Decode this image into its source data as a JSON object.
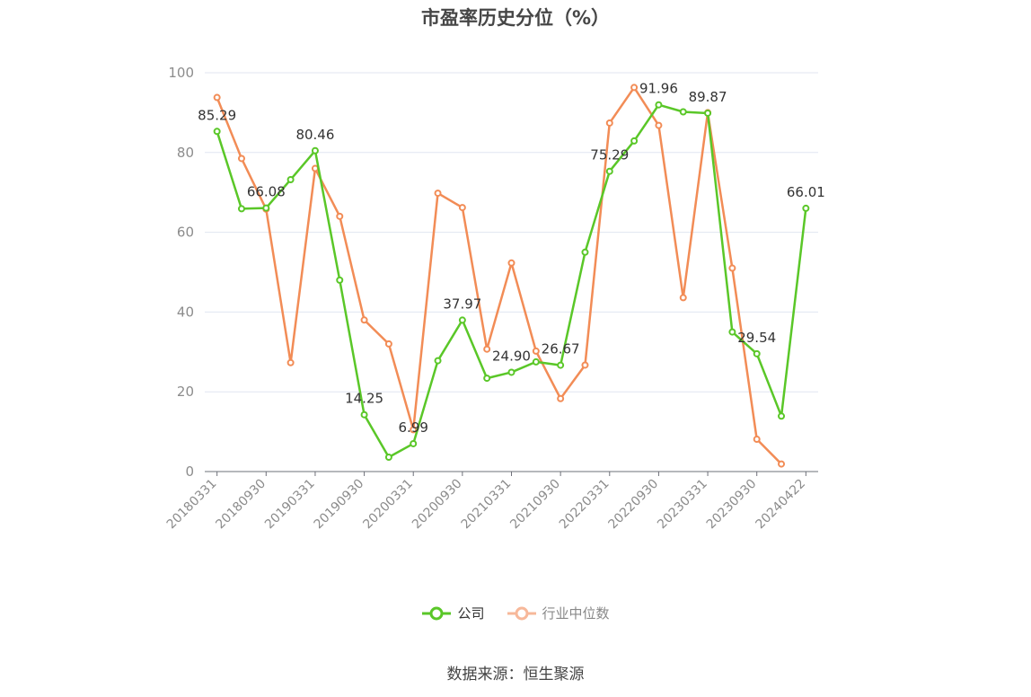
{
  "chart_data": {
    "type": "line",
    "title": "市盈率历史分位（%）",
    "xlabel": "",
    "ylabel": "",
    "ylim": [
      0,
      100
    ],
    "yticks": [
      0,
      20,
      40,
      60,
      80,
      100
    ],
    "x": [
      "20180331",
      "20180630",
      "20180930",
      "20181231",
      "20190331",
      "20190630",
      "20190930",
      "20191231",
      "20200331",
      "20200630",
      "20200930",
      "20201231",
      "20210331",
      "20210630",
      "20210930",
      "20211231",
      "20220331",
      "20220630",
      "20220930",
      "20221231",
      "20230331",
      "20230630",
      "20230930",
      "20231231",
      "20240422"
    ],
    "xtick_labels": [
      "20180331",
      "20180930",
      "20190331",
      "20190930",
      "20200331",
      "20200930",
      "20210331",
      "20210930",
      "20220331",
      "20220930",
      "20230331",
      "20230930",
      "20240422"
    ],
    "grid": true,
    "legend_position": "bottom",
    "series": [
      {
        "name": "公司",
        "color": "#5ac728",
        "values": [
          85.29,
          65.9,
          66.08,
          73.2,
          80.46,
          48.0,
          14.25,
          3.6,
          6.99,
          27.8,
          37.97,
          23.4,
          24.9,
          27.5,
          26.67,
          55.0,
          75.29,
          82.9,
          91.96,
          90.2,
          89.87,
          35.0,
          29.54,
          13.9,
          66.01
        ],
        "labels": {
          "0": "85.29",
          "2": "66.08",
          "4": "80.46",
          "6": "14.25",
          "8": "6.99",
          "10": "37.97",
          "12": "24.90",
          "14": "26.67",
          "16": "75.29",
          "18": "91.96",
          "20": "89.87",
          "22": "29.54",
          "24": "66.01"
        }
      },
      {
        "name": "行业中位数",
        "color": "#f28c56",
        "values": [
          93.8,
          78.5,
          65.8,
          27.3,
          76.0,
          64.0,
          38.0,
          32.0,
          10.5,
          69.8,
          66.2,
          30.7,
          52.3,
          30.2,
          18.3,
          26.7,
          87.4,
          96.3,
          86.8,
          43.6,
          90.0,
          51.0,
          8.1,
          1.9,
          null
        ]
      }
    ]
  },
  "legend": {
    "company": "公司",
    "industry": "行业中位数"
  },
  "source_text": "数据来源：恒生聚源",
  "colors": {
    "company": "#5ac728",
    "industry": "#f28c56",
    "industry_legend": "#f7b89a",
    "axis": "#6e7079",
    "grid": "#e0e6f1"
  }
}
